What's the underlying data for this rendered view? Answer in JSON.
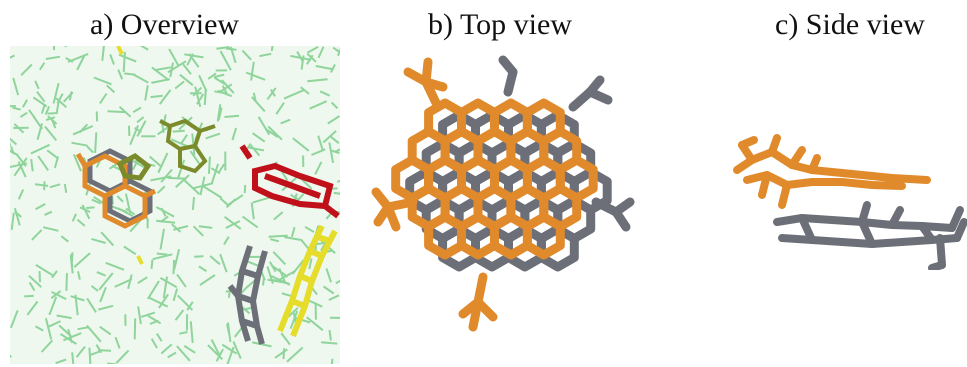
{
  "panels": [
    {
      "title": "a) Overview"
    },
    {
      "title": "b) Top view"
    },
    {
      "title": "c) Side view"
    }
  ],
  "colors": {
    "solvent": "#8fd49a",
    "molecule_orange": "#e08a2c",
    "molecule_gray": "#6d6f78",
    "molecule_red": "#c0101a",
    "molecule_yellow": "#e6dc2a",
    "molecule_olive": "#7b8a2a"
  }
}
